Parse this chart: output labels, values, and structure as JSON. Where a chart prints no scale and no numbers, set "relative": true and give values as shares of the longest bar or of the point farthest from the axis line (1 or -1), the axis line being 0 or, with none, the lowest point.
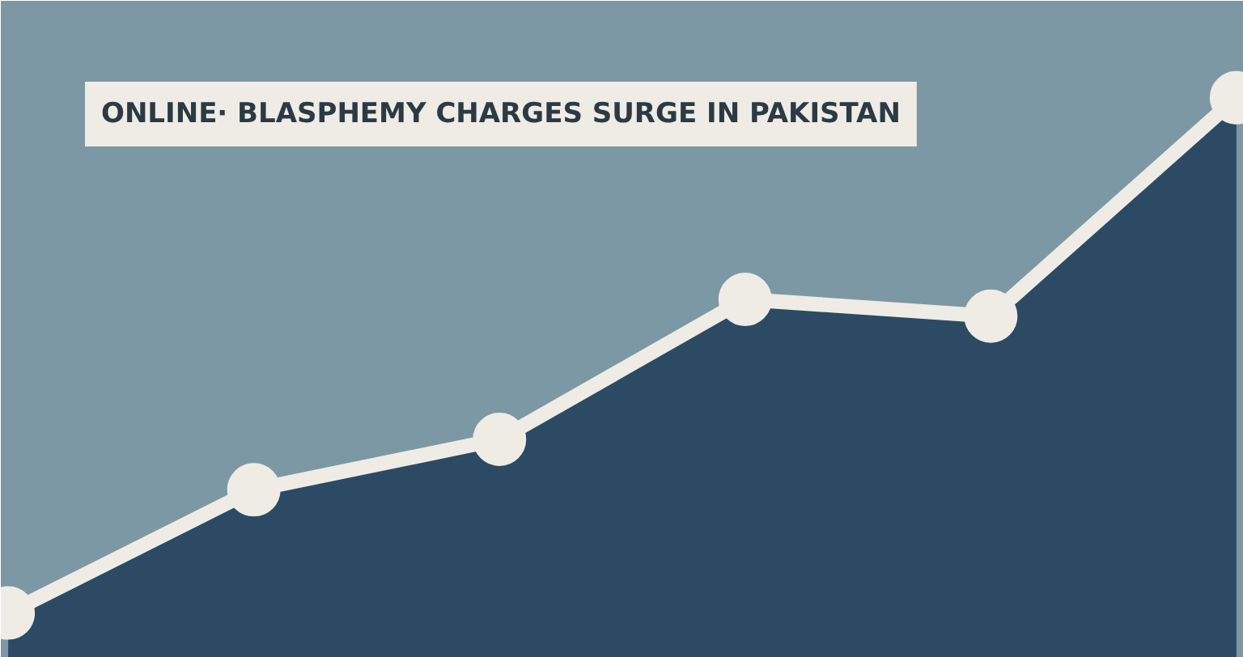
{
  "chart_data": {
    "type": "area",
    "title": "ONLINE· BLASPHEMY CHARGES SURGE IN PAKISTAN",
    "relative": true,
    "categories": [
      null,
      null,
      null,
      null,
      null,
      null
    ],
    "series": [
      {
        "color": "#2c4a63",
        "values": [
          0.08,
          0.3,
          0.39,
          0.64,
          0.61,
          1
        ]
      }
    ],
    "marker": "circle",
    "grid": false
  }
}
